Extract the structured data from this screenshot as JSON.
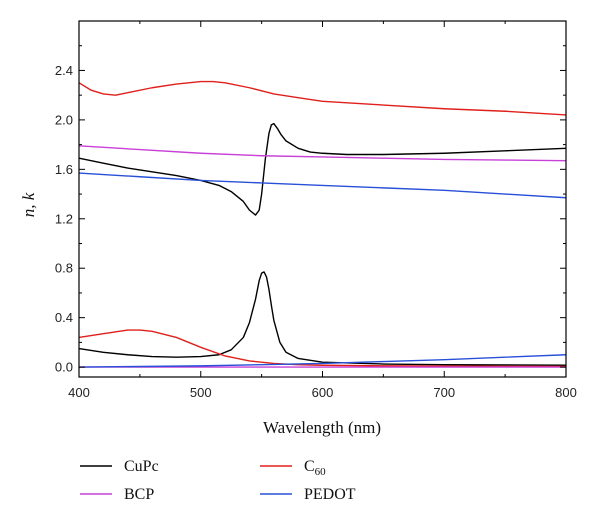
{
  "chart_data": {
    "type": "line",
    "title": "",
    "xlabel": "Wavelength (nm)",
    "ylabel": "n, k",
    "xlim": [
      400,
      800
    ],
    "ylim": [
      -0.08,
      2.8
    ],
    "x_ticks": [
      400,
      500,
      600,
      700,
      800
    ],
    "y_ticks": [
      0.0,
      0.4,
      0.8,
      1.2,
      1.6,
      2.0,
      2.4
    ],
    "grid": false,
    "legend_position": "below",
    "series": [
      {
        "name": "CuPc",
        "component": "n",
        "color": "#000000",
        "x": [
          400,
          420,
          440,
          460,
          480,
          500,
          515,
          525,
          535,
          540,
          545,
          548,
          550,
          553,
          556,
          558,
          560,
          563,
          566,
          570,
          580,
          590,
          600,
          620,
          650,
          700,
          750,
          800
        ],
        "y": [
          1.69,
          1.65,
          1.61,
          1.58,
          1.55,
          1.51,
          1.47,
          1.42,
          1.34,
          1.27,
          1.23,
          1.27,
          1.4,
          1.68,
          1.89,
          1.96,
          1.97,
          1.93,
          1.88,
          1.83,
          1.77,
          1.74,
          1.73,
          1.72,
          1.72,
          1.73,
          1.75,
          1.77
        ]
      },
      {
        "name": "CuPc",
        "component": "k",
        "color": "#000000",
        "x": [
          400,
          420,
          440,
          460,
          480,
          500,
          515,
          525,
          535,
          540,
          545,
          548,
          550,
          552,
          554,
          556,
          558,
          560,
          565,
          570,
          580,
          600,
          650,
          700,
          800
        ],
        "y": [
          0.15,
          0.12,
          0.1,
          0.085,
          0.08,
          0.085,
          0.1,
          0.14,
          0.24,
          0.36,
          0.55,
          0.7,
          0.76,
          0.77,
          0.73,
          0.63,
          0.5,
          0.38,
          0.2,
          0.12,
          0.07,
          0.04,
          0.025,
          0.02,
          0.015
        ]
      },
      {
        "name": "C60",
        "component": "n",
        "color": "#e0201b",
        "x": [
          400,
          410,
          420,
          430,
          440,
          460,
          480,
          500,
          510,
          520,
          540,
          560,
          580,
          600,
          650,
          700,
          750,
          800
        ],
        "y": [
          2.3,
          2.24,
          2.21,
          2.2,
          2.22,
          2.26,
          2.29,
          2.31,
          2.31,
          2.3,
          2.26,
          2.21,
          2.18,
          2.15,
          2.12,
          2.09,
          2.07,
          2.04
        ]
      },
      {
        "name": "C60",
        "component": "k",
        "color": "#e0201b",
        "x": [
          400,
          420,
          440,
          450,
          460,
          480,
          500,
          520,
          540,
          560,
          580,
          600,
          650,
          700,
          800
        ],
        "y": [
          0.24,
          0.27,
          0.3,
          0.3,
          0.29,
          0.24,
          0.16,
          0.09,
          0.05,
          0.03,
          0.02,
          0.015,
          0.01,
          0.008,
          0.005
        ]
      },
      {
        "name": "BCP",
        "component": "n",
        "color": "#c840d8",
        "x": [
          400,
          450,
          500,
          550,
          600,
          650,
          700,
          750,
          800
        ],
        "y": [
          1.79,
          1.76,
          1.73,
          1.71,
          1.7,
          1.69,
          1.68,
          1.675,
          1.67
        ]
      },
      {
        "name": "BCP",
        "component": "k",
        "color": "#c840d8",
        "x": [
          400,
          500,
          600,
          700,
          800
        ],
        "y": [
          0.0,
          0.0,
          0.0,
          0.0,
          0.0
        ]
      },
      {
        "name": "PEDOT",
        "component": "n",
        "color": "#2850d8",
        "x": [
          400,
          450,
          500,
          550,
          600,
          650,
          700,
          750,
          800
        ],
        "y": [
          1.57,
          1.54,
          1.51,
          1.49,
          1.47,
          1.45,
          1.43,
          1.4,
          1.37
        ]
      },
      {
        "name": "PEDOT",
        "component": "k",
        "color": "#2850d8",
        "x": [
          400,
          450,
          500,
          550,
          600,
          650,
          700,
          750,
          800
        ],
        "y": [
          0.0,
          0.005,
          0.01,
          0.02,
          0.03,
          0.045,
          0.06,
          0.08,
          0.1
        ]
      }
    ],
    "legend": [
      {
        "label": "CuPc",
        "color": "#000000"
      },
      {
        "label": "C",
        "subscript": "60",
        "color": "#e0201b"
      },
      {
        "label": "BCP",
        "color": "#c840d8"
      },
      {
        "label": "PEDOT",
        "color": "#2850d8"
      }
    ]
  }
}
